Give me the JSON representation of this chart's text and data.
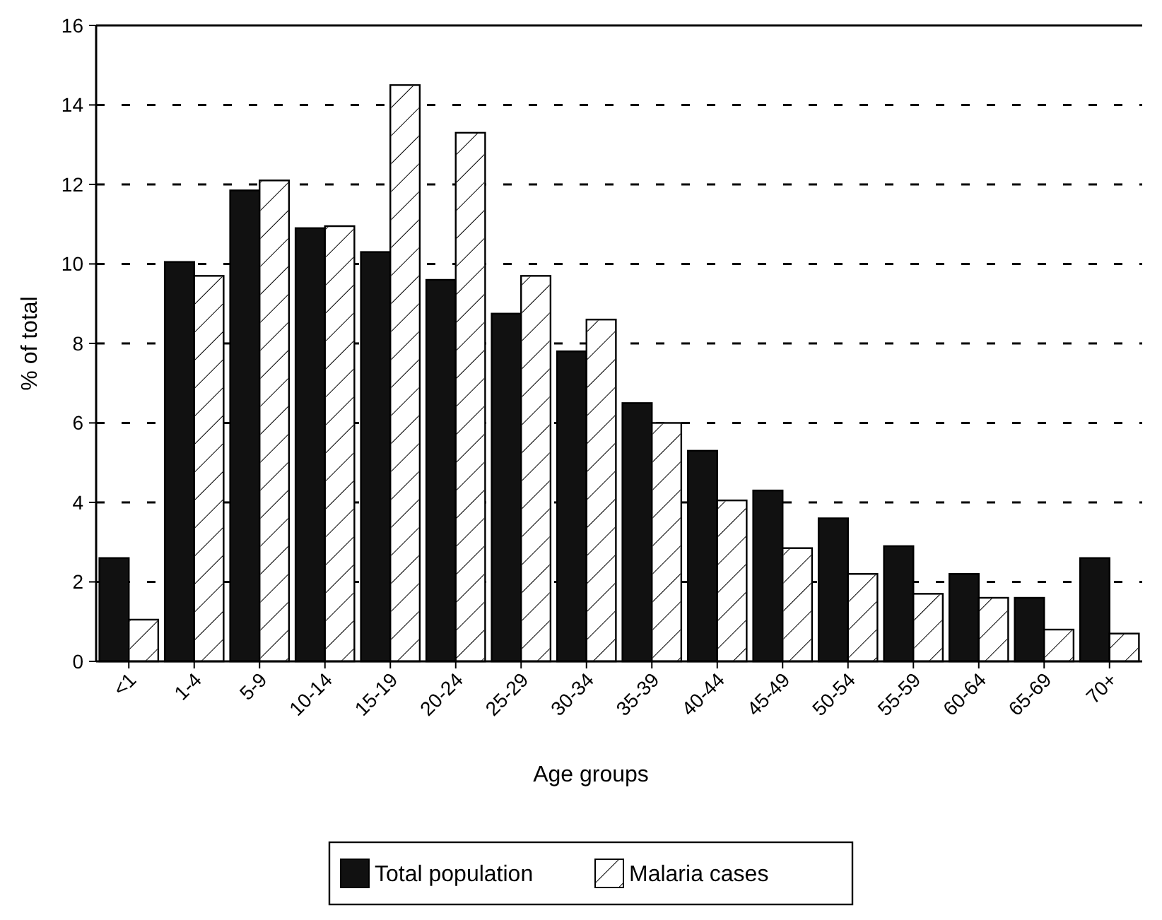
{
  "chart_data": {
    "type": "bar",
    "xlabel": "Age groups",
    "ylabel": "% of total",
    "categories": [
      "<1",
      "1-4",
      "5-9",
      "10-14",
      "15-19",
      "20-24",
      "25-29",
      "30-34",
      "35-39",
      "40-44",
      "45-49",
      "50-54",
      "55-59",
      "60-64",
      "65-69",
      "70+"
    ],
    "series": [
      {
        "name": "Total population",
        "color": "#111111",
        "values": [
          2.6,
          10.05,
          11.85,
          10.9,
          10.3,
          9.6,
          8.75,
          7.8,
          6.5,
          5.3,
          4.3,
          3.6,
          2.9,
          2.2,
          1.6,
          2.6
        ]
      },
      {
        "name": "Malaria cases",
        "color": "#ffffff",
        "values": [
          1.05,
          9.7,
          12.1,
          10.95,
          14.5,
          13.3,
          9.7,
          8.6,
          6.0,
          4.05,
          2.85,
          2.2,
          1.7,
          1.6,
          0.8,
          0.7
        ]
      }
    ],
    "ylim": [
      0,
      16
    ],
    "yticks": [
      0,
      2,
      4,
      6,
      8,
      10,
      12,
      14,
      16
    ],
    "grid": "y",
    "legend": "bottom"
  }
}
